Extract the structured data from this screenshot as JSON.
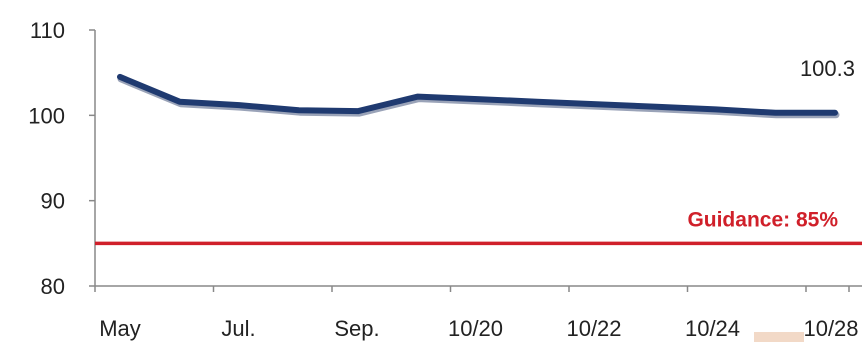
{
  "chart_data": {
    "type": "line",
    "title": "",
    "xlabel": "",
    "ylabel": "",
    "ylim": [
      80,
      110
    ],
    "yticks": [
      80,
      90,
      100,
      110
    ],
    "x_tick_labels": [
      "May",
      "Jul.",
      "Sep.",
      "10/20",
      "10/22",
      "10/24",
      "10/28"
    ],
    "grid": false,
    "series": [
      {
        "values": [
          104.5,
          101.6,
          101.2,
          100.6,
          100.5,
          102.2,
          101.9,
          101.6,
          101.3,
          101.0,
          100.7,
          100.3,
          100.3
        ],
        "color": "#1f3a70"
      }
    ],
    "end_label": "100.3",
    "reference_line": {
      "value": 85,
      "label": "Guidance: 85%",
      "color": "#d0202a"
    }
  }
}
